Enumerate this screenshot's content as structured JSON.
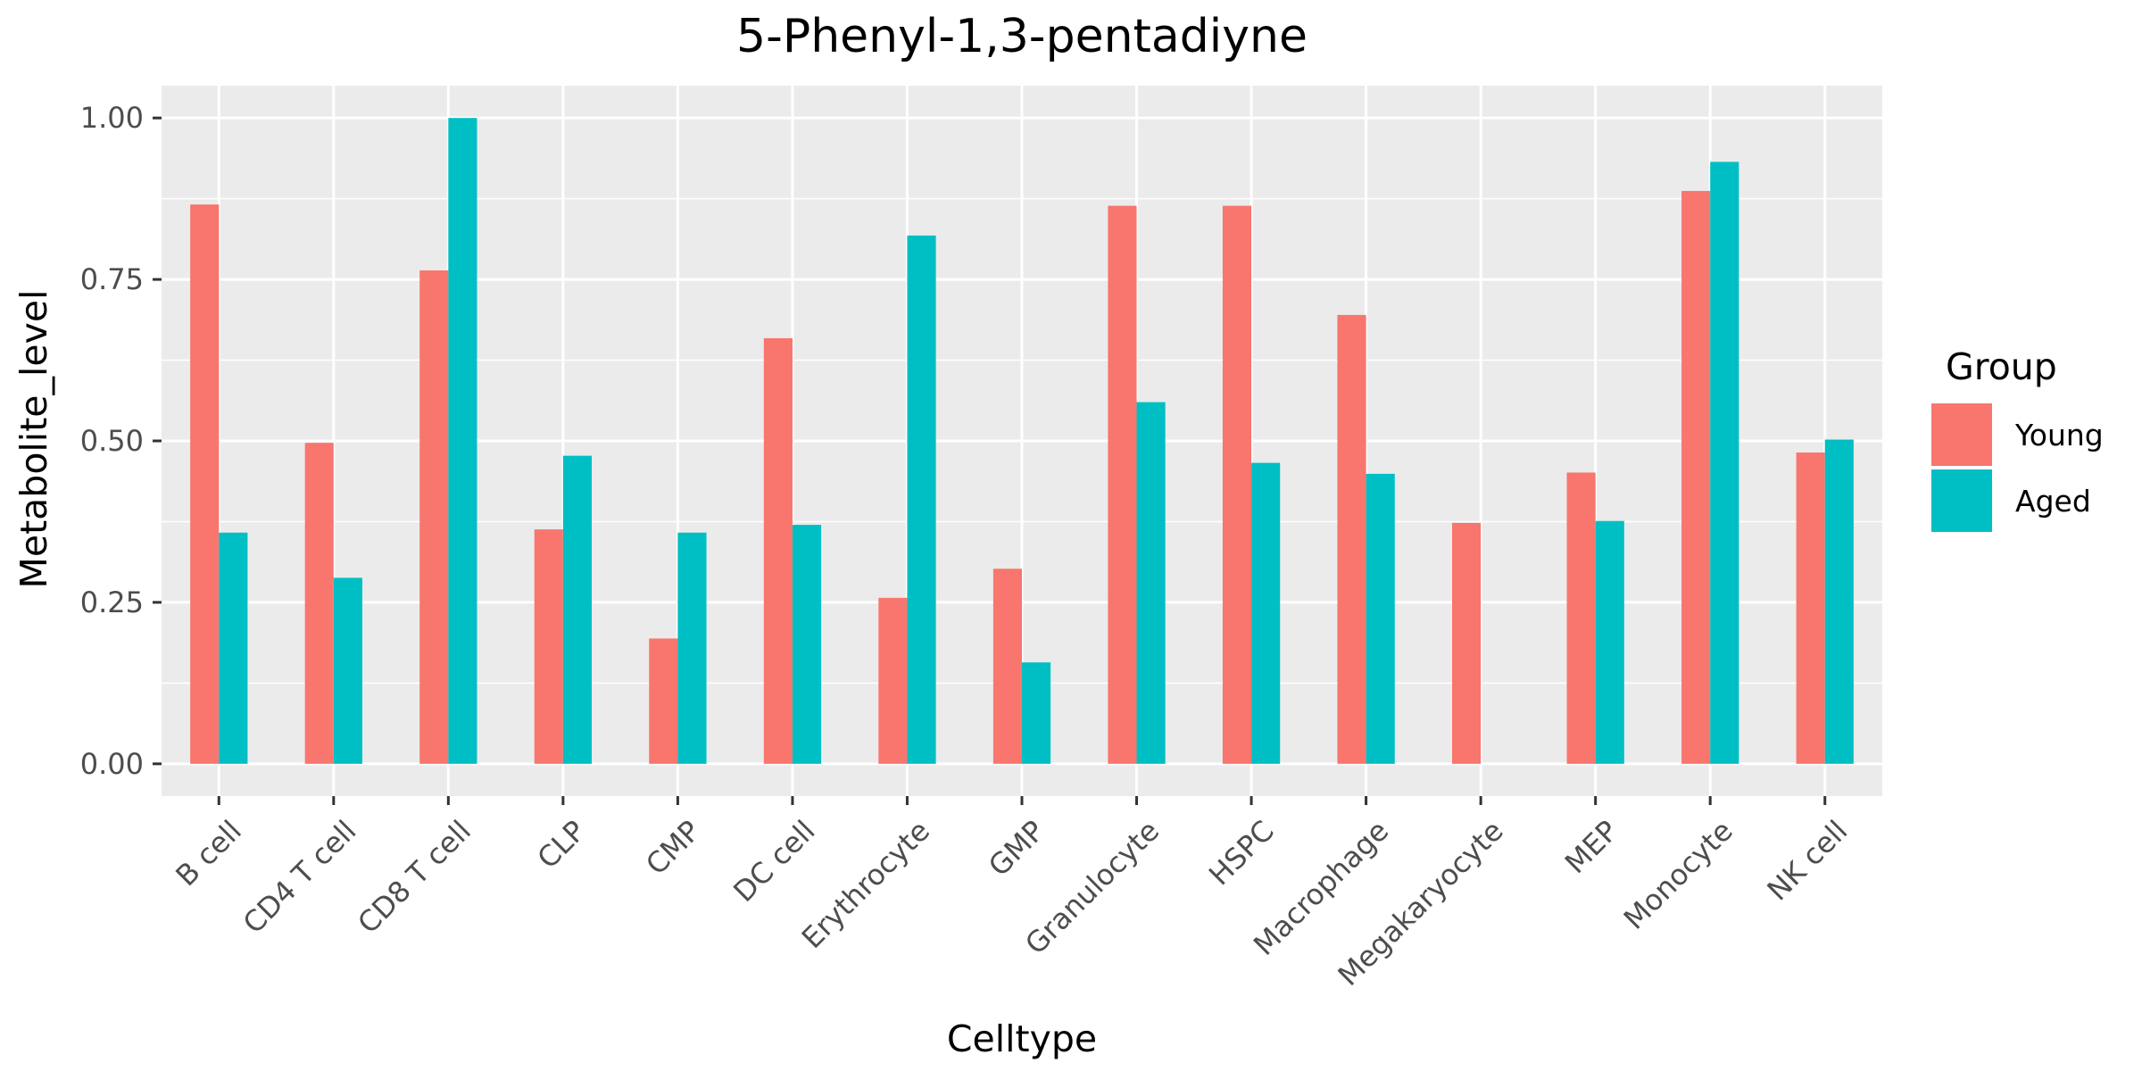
{
  "chart_data": {
    "type": "bar",
    "title": "5-Phenyl-1,3-pentadiyne",
    "xlabel": "Celltype",
    "ylabel": "Metabolite_level",
    "categories": [
      "B cell",
      "CD4 T cell",
      "CD8 T cell",
      "CLP",
      "CMP",
      "DC cell",
      "Erythrocyte",
      "GMP",
      "Granulocyte",
      "HSPC",
      "Macrophage",
      "Megakaryocyte",
      "MEP",
      "Monocyte",
      "NK cell"
    ],
    "series": [
      {
        "name": "Young",
        "color": "#F8766D",
        "values": [
          0.866,
          0.497,
          0.764,
          0.363,
          0.194,
          0.659,
          0.257,
          0.302,
          0.864,
          0.864,
          0.695,
          0.373,
          0.451,
          0.887,
          0.482
        ]
      },
      {
        "name": "Aged",
        "color": "#00BFC4",
        "values": [
          0.358,
          0.288,
          1.0,
          0.477,
          0.358,
          0.37,
          0.818,
          0.157,
          0.56,
          0.466,
          0.449,
          null,
          0.376,
          0.932,
          0.502
        ]
      }
    ],
    "ylim": [
      -0.05,
      1.05
    ],
    "yticks": [
      0,
      0.25,
      0.5,
      0.75,
      1.0
    ],
    "ytick_labels": [
      "0.00",
      "0.25",
      "0.50",
      "0.75",
      "1.00"
    ],
    "grid": true,
    "panel_background": "#EBEBEB",
    "legend": {
      "title": "Group",
      "position": "right"
    }
  }
}
